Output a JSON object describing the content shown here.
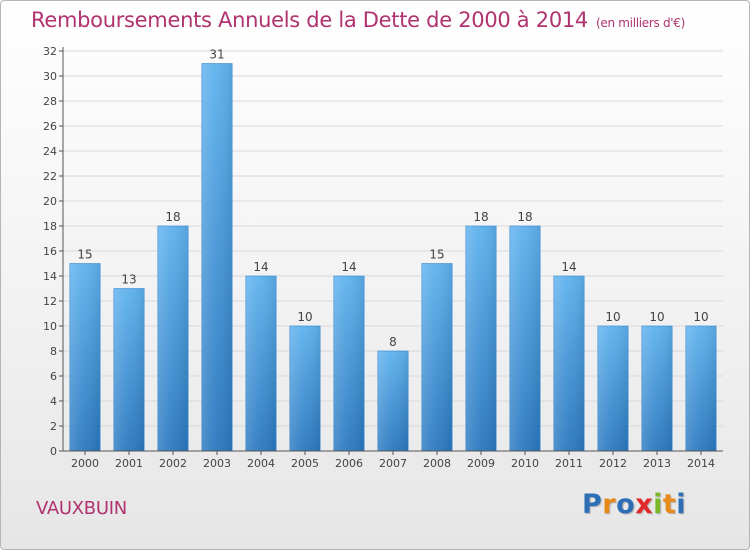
{
  "header": {
    "title": "Remboursements Annuels de la Dette de 2000 à 2014",
    "unit": "(en milliers d'€)"
  },
  "footer": {
    "commune": "VAUXBUIN",
    "logo_letters": [
      "P",
      "r",
      "o",
      "x",
      "i",
      "t",
      "i"
    ]
  },
  "colors": {
    "title": "#b0336f",
    "bar_top": "#5fb2ee",
    "bar_bottom": "#2a78bf",
    "axis": "#555555",
    "grid": "#d9d9d9"
  },
  "chart_data": {
    "type": "bar",
    "title": "Remboursements Annuels de la Dette de 2000 à 2014",
    "xlabel": "",
    "ylabel": "",
    "categories": [
      "2000",
      "2001",
      "2002",
      "2003",
      "2004",
      "2005",
      "2006",
      "2007",
      "2008",
      "2009",
      "2010",
      "2011",
      "2012",
      "2013",
      "2014"
    ],
    "values": [
      15,
      13,
      18,
      31,
      14,
      10,
      14,
      8,
      15,
      18,
      18,
      14,
      10,
      10,
      10
    ],
    "ylim": [
      0,
      32
    ],
    "yticks": [
      0,
      2,
      4,
      6,
      8,
      10,
      12,
      14,
      16,
      18,
      20,
      22,
      24,
      26,
      28,
      30,
      32
    ],
    "grid": true,
    "data_labels": [
      "15",
      "13",
      "18",
      "31",
      "14",
      "10",
      "14",
      "8",
      "15",
      "18",
      "18",
      "14",
      "10",
      "10",
      "10"
    ]
  }
}
